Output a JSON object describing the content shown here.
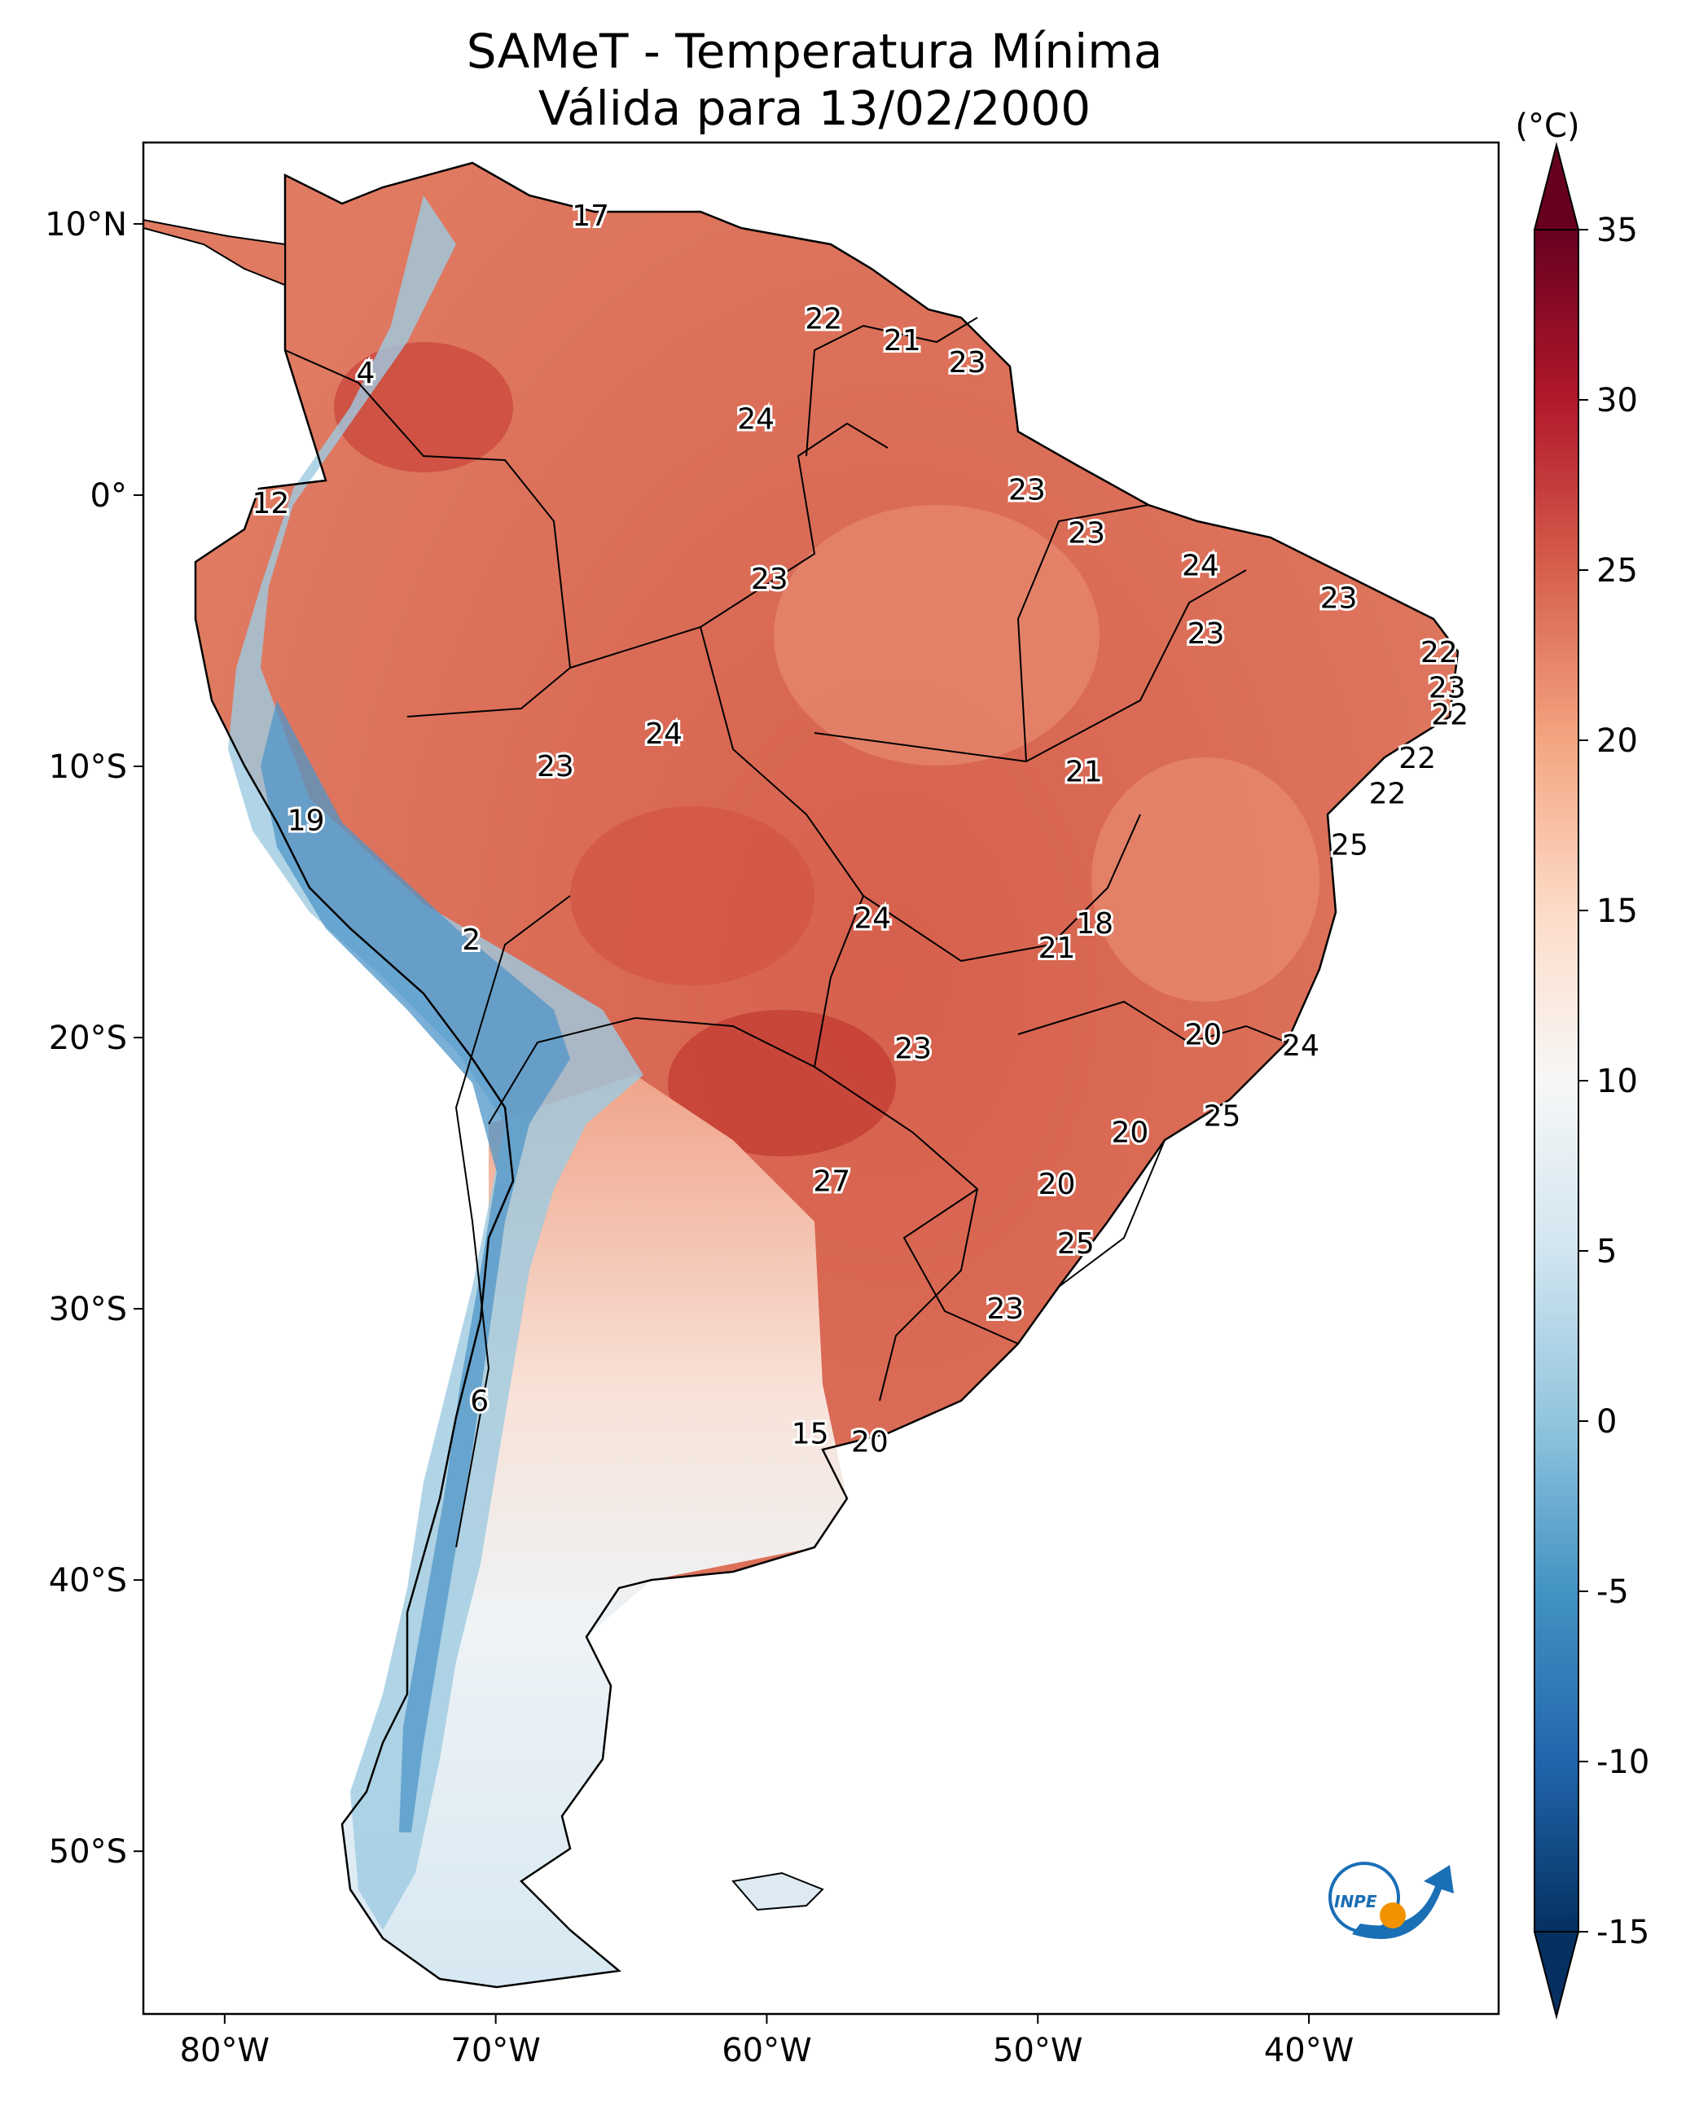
{
  "title": {
    "line1": "SAMeT - Temperatura Mínima",
    "line2": "Válida para 13/02/2000"
  },
  "map_data": {
    "type": "choropleth-temperature",
    "region": "South America",
    "lon_range": [
      -83,
      -33
    ],
    "lat_range": [
      -56,
      13
    ],
    "lon_ticks": [
      "80°W",
      "70°W",
      "60°W",
      "50°W",
      "40°W"
    ],
    "lat_ticks": [
      "10°N",
      "0°",
      "10°S",
      "20°S",
      "30°S",
      "40°S",
      "50°S"
    ],
    "lon_tick_values": [
      -80,
      -70,
      -60,
      -50,
      -40
    ],
    "lat_tick_values": [
      10,
      0,
      -10,
      -20,
      -30,
      -40,
      -50
    ],
    "colorbar": {
      "unit_label": "(°C)",
      "min": -15,
      "max": 35,
      "tick_labels": [
        "35",
        "30",
        "25",
        "20",
        "15",
        "10",
        "5",
        "0",
        "-5",
        "-10",
        "-15"
      ],
      "tick_values": [
        35,
        30,
        25,
        20,
        15,
        10,
        5,
        0,
        -5,
        -10,
        -15
      ],
      "colormap": "RdBu_r",
      "extend": "both"
    },
    "station_values": [
      {
        "label": "17",
        "lon": -66.5,
        "lat": 10.3
      },
      {
        "label": "22",
        "lon": -57.9,
        "lat": 6.5
      },
      {
        "label": "21",
        "lon": -55.0,
        "lat": 5.7
      },
      {
        "label": "23",
        "lon": -52.6,
        "lat": 4.9
      },
      {
        "label": "4",
        "lon": -74.8,
        "lat": 4.5
      },
      {
        "label": "24",
        "lon": -60.4,
        "lat": 2.8
      },
      {
        "label": "23",
        "lon": -50.4,
        "lat": 0.2
      },
      {
        "label": "12",
        "lon": -78.3,
        "lat": -0.3
      },
      {
        "label": "23",
        "lon": -48.2,
        "lat": -1.4
      },
      {
        "label": "24",
        "lon": -44.0,
        "lat": -2.6
      },
      {
        "label": "23",
        "lon": -59.9,
        "lat": -3.1
      },
      {
        "label": "23",
        "lon": -38.9,
        "lat": -3.8
      },
      {
        "label": "23",
        "lon": -43.8,
        "lat": -5.1
      },
      {
        "label": "22",
        "lon": -35.2,
        "lat": -5.8
      },
      {
        "label": "23",
        "lon": -34.9,
        "lat": -7.1
      },
      {
        "label": "22",
        "lon": -34.8,
        "lat": -8.1
      },
      {
        "label": "24",
        "lon": -63.8,
        "lat": -8.8
      },
      {
        "label": "22",
        "lon": -36.0,
        "lat": -9.7
      },
      {
        "label": "23",
        "lon": -67.8,
        "lat": -10.0
      },
      {
        "label": "21",
        "lon": -48.3,
        "lat": -10.2
      },
      {
        "label": "22",
        "lon": -37.1,
        "lat": -11.0
      },
      {
        "label": "19",
        "lon": -77.0,
        "lat": -12.0
      },
      {
        "label": "25",
        "lon": -38.5,
        "lat": -12.9
      },
      {
        "label": "18",
        "lon": -47.9,
        "lat": -15.8
      },
      {
        "label": "24",
        "lon": -56.1,
        "lat": -15.6
      },
      {
        "label": "21",
        "lon": -49.3,
        "lat": -16.7
      },
      {
        "label": "2",
        "lon": -70.9,
        "lat": -16.4
      },
      {
        "label": "20",
        "lon": -43.9,
        "lat": -19.9
      },
      {
        "label": "24",
        "lon": -40.3,
        "lat": -20.3
      },
      {
        "label": "23",
        "lon": -54.6,
        "lat": -20.4
      },
      {
        "label": "25",
        "lon": -43.2,
        "lat": -22.9
      },
      {
        "label": "20",
        "lon": -46.6,
        "lat": -23.5
      },
      {
        "label": "27",
        "lon": -57.6,
        "lat": -25.3
      },
      {
        "label": "20",
        "lon": -49.3,
        "lat": -25.4
      },
      {
        "label": "25",
        "lon": -48.6,
        "lat": -27.6
      },
      {
        "label": "23",
        "lon": -51.2,
        "lat": -30.0
      },
      {
        "label": "6",
        "lon": -70.6,
        "lat": -33.4
      },
      {
        "label": "15",
        "lon": -58.4,
        "lat": -34.6
      },
      {
        "label": "20",
        "lon": -56.2,
        "lat": -34.9
      }
    ]
  },
  "logo": {
    "text": "INPE",
    "colors": {
      "blue": "#1a6fb5",
      "orange": "#f39200"
    }
  }
}
